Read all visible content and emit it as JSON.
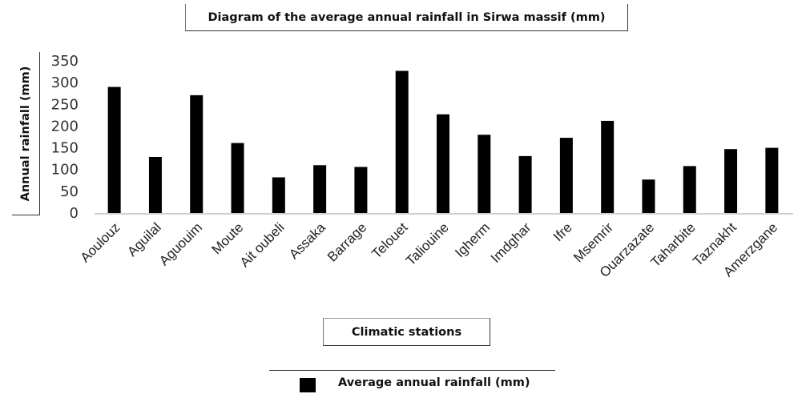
{
  "chart_data": {
    "type": "bar",
    "title": "Diagram of the average annual rainfall in Sirwa massif (mm)",
    "xlabel": "Climatic stations",
    "ylabel": "Annual rainfall (mm)",
    "ylim": [
      0,
      350
    ],
    "yticks": [
      0,
      50,
      100,
      150,
      200,
      250,
      300,
      350
    ],
    "grid": false,
    "legend_position": "bottom",
    "categories": [
      "Aoulouz",
      "Aguilal",
      "Aguouim",
      "Moute",
      "Ait oubeli",
      "Assaka",
      "Barrage",
      "Telouet",
      "Taliouine",
      "Igherm",
      "Imdghar",
      "Ifre",
      "Msemrir",
      "Ouarzazate",
      "Taharbite",
      "Taznakht",
      "Amerzgane"
    ],
    "series": [
      {
        "name": "Average annual rainfall (mm)",
        "color": "#000000",
        "values": [
          290,
          129,
          271,
          161,
          82,
          110,
          106,
          327,
          227,
          180,
          131,
          173,
          212,
          77,
          108,
          147,
          150
        ]
      }
    ]
  }
}
